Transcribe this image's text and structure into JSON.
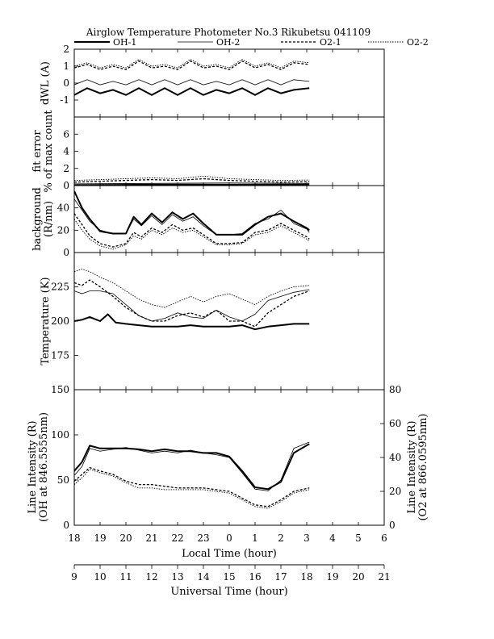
{
  "chart_data": {
    "type": "line",
    "title": "Airglow Temperature Photometer No.3  Rikubetsu   041109",
    "legend": {
      "placement": "top",
      "entries": [
        {
          "name": "OH-1",
          "color": "#000000",
          "style": "solid-thick"
        },
        {
          "name": "OH-2",
          "color": "#000000",
          "style": "solid-thin"
        },
        {
          "name": "O2-1",
          "color": "#000000",
          "style": "dashed"
        },
        {
          "name": "O2-2",
          "color": "#000000",
          "style": "dotted"
        }
      ]
    },
    "x_axes": {
      "local_time": {
        "label": "Local Time (hour)",
        "ticks": [
          "18",
          "19",
          "20",
          "21",
          "22",
          "23",
          "0",
          "1",
          "2",
          "3",
          "4",
          "5",
          "6"
        ]
      },
      "universal_time": {
        "label": "Universal Time (hour)",
        "ticks": [
          "9",
          "10",
          "11",
          "12",
          "13",
          "14",
          "15",
          "16",
          "17",
          "18",
          "19",
          "20",
          "21"
        ]
      },
      "range_ut": [
        9,
        21
      ]
    },
    "panels": [
      {
        "id": "dwl",
        "ylabel": "dWL (A)",
        "ylim": [
          -2,
          2
        ],
        "yticks": [
          "-1",
          "0",
          "1",
          "2"
        ],
        "series": [
          {
            "name": "OH-1",
            "x": [
              9.0,
              9.5,
              10.0,
              10.5,
              11.0,
              11.5,
              12.0,
              12.5,
              13.0,
              13.5,
              14.0,
              14.5,
              15.0,
              15.5,
              16.0,
              16.5,
              17.0,
              17.5,
              18.1
            ],
            "y": [
              -0.7,
              -0.3,
              -0.6,
              -0.4,
              -0.7,
              -0.3,
              -0.7,
              -0.3,
              -0.7,
              -0.3,
              -0.7,
              -0.4,
              -0.6,
              -0.3,
              -0.7,
              -0.3,
              -0.6,
              -0.4,
              -0.3
            ]
          },
          {
            "name": "OH-2",
            "x": [
              9.0,
              9.5,
              10.0,
              10.5,
              11.0,
              11.5,
              12.0,
              12.5,
              13.0,
              13.5,
              14.0,
              14.5,
              15.0,
              15.5,
              16.0,
              16.5,
              17.0,
              17.5,
              18.1
            ],
            "y": [
              -0.1,
              0.2,
              -0.1,
              0.1,
              -0.1,
              0.2,
              -0.1,
              0.2,
              -0.1,
              0.2,
              -0.1,
              0.1,
              -0.1,
              0.2,
              -0.1,
              0.2,
              -0.1,
              0.2,
              0.1
            ]
          },
          {
            "name": "O2-1",
            "x": [
              9.0,
              9.5,
              10.0,
              10.5,
              11.0,
              11.5,
              12.0,
              12.5,
              13.0,
              13.5,
              14.0,
              14.5,
              15.0,
              15.5,
              16.0,
              16.5,
              17.0,
              17.5,
              18.1
            ],
            "y": [
              0.9,
              1.1,
              0.8,
              1.0,
              0.8,
              1.3,
              0.9,
              1.0,
              0.8,
              1.3,
              0.9,
              1.0,
              0.8,
              1.3,
              0.9,
              1.1,
              0.8,
              1.2,
              1.1
            ]
          },
          {
            "name": "O2-2",
            "x": [
              9.0,
              9.5,
              10.0,
              10.5,
              11.0,
              11.5,
              12.0,
              12.5,
              13.0,
              13.5,
              14.0,
              14.5,
              15.0,
              15.5,
              16.0,
              16.5,
              17.0,
              17.5,
              18.1
            ],
            "y": [
              1.0,
              1.2,
              0.9,
              1.1,
              0.9,
              1.4,
              1.0,
              1.1,
              0.9,
              1.4,
              1.0,
              1.1,
              0.9,
              1.4,
              1.0,
              1.2,
              0.9,
              1.3,
              1.2
            ]
          }
        ]
      },
      {
        "id": "fit",
        "ylabel": "fit error\n% of max count",
        "ylim": [
          0,
          8
        ],
        "yticks": [
          "0",
          "2",
          "4",
          "6"
        ],
        "series": [
          {
            "name": "OH-1",
            "x": [
              9.0,
              12.0,
              15.0,
              18.1
            ],
            "y": [
              0.05,
              0.1,
              0.1,
              0.1
            ]
          },
          {
            "name": "OH-2",
            "x": [
              9.0,
              12.0,
              15.0,
              18.1
            ],
            "y": [
              0.2,
              0.25,
              0.3,
              0.25
            ]
          },
          {
            "name": "O2-1",
            "x": [
              9.0,
              10.0,
              11.0,
              12.0,
              13.0,
              14.0,
              15.0,
              16.0,
              17.0,
              18.1
            ],
            "y": [
              0.4,
              0.5,
              0.6,
              0.7,
              0.6,
              0.8,
              0.6,
              0.5,
              0.4,
              0.45
            ]
          },
          {
            "name": "O2-2",
            "x": [
              9.0,
              10.0,
              11.0,
              12.0,
              13.0,
              14.0,
              15.0,
              16.0,
              17.0,
              18.1
            ],
            "y": [
              0.6,
              0.7,
              0.8,
              0.9,
              0.8,
              1.1,
              0.8,
              0.7,
              0.6,
              0.65
            ]
          }
        ]
      },
      {
        "id": "background",
        "ylabel": "background\n(R/nm)",
        "ylim": [
          0,
          60
        ],
        "yticks": [
          "0",
          "20",
          "40"
        ],
        "series": [
          {
            "name": "OH-1",
            "x": [
              9.0,
              9.3,
              9.6,
              10.0,
              10.5,
              11.0,
              11.3,
              11.6,
              12.0,
              12.4,
              12.8,
              13.2,
              13.6,
              14.0,
              14.5,
              15.0,
              15.5,
              16.0,
              16.5,
              17.0,
              17.5,
              18.0,
              18.1
            ],
            "y": [
              55,
              40,
              30,
              19,
              17,
              17,
              32,
              25,
              35,
              27,
              36,
              30,
              35,
              26,
              16,
              16,
              16,
              25,
              32,
              35,
              28,
              22,
              20
            ]
          },
          {
            "name": "OH-2",
            "x": [
              9.0,
              9.3,
              9.6,
              10.0,
              10.5,
              11.0,
              11.3,
              11.6,
              12.0,
              12.4,
              12.8,
              13.2,
              13.6,
              14.0,
              14.5,
              15.0,
              15.5,
              16.0,
              16.5,
              17.0,
              17.5,
              18.0,
              18.1
            ],
            "y": [
              48,
              38,
              28,
              20,
              17,
              17,
              30,
              24,
              33,
              25,
              34,
              28,
              32,
              24,
              16,
              16,
              17,
              26,
              30,
              38,
              26,
              21,
              18
            ]
          },
          {
            "name": "O2-1",
            "x": [
              9.0,
              9.3,
              9.6,
              10.0,
              10.5,
              11.0,
              11.3,
              11.6,
              12.0,
              12.4,
              12.8,
              13.2,
              13.6,
              14.0,
              14.5,
              15.0,
              15.5,
              16.0,
              16.5,
              17.0,
              17.5,
              18.0,
              18.1
            ],
            "y": [
              35,
              25,
              15,
              8,
              5,
              8,
              18,
              14,
              22,
              18,
              25,
              20,
              22,
              16,
              8,
              8,
              9,
              18,
              20,
              26,
              20,
              14,
              12
            ]
          },
          {
            "name": "O2-2",
            "x": [
              9.0,
              9.3,
              9.6,
              10.0,
              10.5,
              11.0,
              11.3,
              11.6,
              12.0,
              12.4,
              12.8,
              13.2,
              13.6,
              14.0,
              14.5,
              15.0,
              15.5,
              16.0,
              16.5,
              17.0,
              17.5,
              18.0,
              18.1
            ],
            "y": [
              30,
              20,
              12,
              6,
              3,
              7,
              15,
              12,
              20,
              16,
              22,
              18,
              20,
              14,
              7,
              7,
              8,
              16,
              18,
              24,
              18,
              12,
              10
            ]
          }
        ]
      },
      {
        "id": "temperature",
        "ylabel": "Temperature (K)",
        "ylim": [
          150,
          250
        ],
        "yticks": [
          "175",
          "200",
          "225"
        ],
        "series": [
          {
            "name": "OH-1",
            "x": [
              9.0,
              9.3,
              9.6,
              10.0,
              10.3,
              10.6,
              11.0,
              11.5,
              12.0,
              12.5,
              13.0,
              13.5,
              14.0,
              14.5,
              15.0,
              15.5,
              16.0,
              16.5,
              17.0,
              17.5,
              18.1
            ],
            "y": [
              200,
              201,
              203,
              200,
              205,
              199,
              198,
              197,
              196,
              196,
              196,
              197,
              196,
              196,
              196,
              197,
              194,
              196,
              197,
              198,
              198
            ]
          },
          {
            "name": "OH-2",
            "x": [
              9.0,
              9.3,
              9.6,
              10.0,
              10.5,
              11.0,
              11.5,
              12.0,
              12.5,
              13.0,
              13.5,
              14.0,
              14.5,
              15.0,
              15.5,
              16.0,
              16.5,
              17.0,
              17.5,
              18.1
            ],
            "y": [
              222,
              220,
              222,
              222,
              220,
              212,
              204,
              200,
              202,
              206,
              203,
              202,
              208,
              203,
              200,
              205,
              215,
              218,
              221,
              223
            ]
          },
          {
            "name": "O2-1",
            "x": [
              9.0,
              9.3,
              9.6,
              10.0,
              10.5,
              11.0,
              11.5,
              12.0,
              12.5,
              13.0,
              13.5,
              14.0,
              14.5,
              15.0,
              15.5,
              16.0,
              16.5,
              17.0,
              17.5,
              18.1
            ],
            "y": [
              228,
              226,
              230,
              225,
              218,
              210,
              204,
              200,
              200,
              204,
              206,
              203,
              208,
              200,
              200,
              196,
              206,
              212,
              218,
              222
            ]
          },
          {
            "name": "O2-2",
            "x": [
              9.0,
              9.3,
              9.6,
              10.0,
              10.5,
              11.0,
              11.5,
              12.0,
              12.5,
              13.0,
              13.5,
              14.0,
              14.5,
              15.0,
              15.5,
              16.0,
              16.5,
              17.0,
              17.5,
              18.1
            ],
            "y": [
              236,
              238,
              236,
              232,
              228,
              222,
              216,
              212,
              210,
              214,
              218,
              214,
              218,
              220,
              216,
              212,
              218,
              222,
              225,
              226
            ]
          }
        ]
      },
      {
        "id": "intensity",
        "ylabel_left": "Line Intensity (R)\n(OH at 846.5555nm)",
        "ylabel_right": "Line Intensity (R)\n(O2 at 866.0595nm)",
        "ylim_left": [
          0,
          150
        ],
        "ylim_right": [
          0,
          80
        ],
        "yticks_left": [
          "0",
          "50",
          "100",
          "150"
        ],
        "yticks_right": [
          "0",
          "20",
          "40",
          "60",
          "80"
        ],
        "series": [
          {
            "name": "OH-1",
            "axis": "left",
            "x": [
              9.0,
              9.3,
              9.6,
              10.0,
              10.5,
              11.0,
              11.5,
              12.0,
              12.5,
              13.0,
              13.5,
              14.0,
              14.5,
              15.0,
              15.5,
              16.0,
              16.5,
              17.0,
              17.5,
              18.1
            ],
            "y": [
              60,
              70,
              88,
              85,
              85,
              85,
              84,
              82,
              84,
              82,
              82,
              80,
              80,
              76,
              60,
              42,
              40,
              48,
              80,
              90
            ]
          },
          {
            "name": "OH-2",
            "axis": "left",
            "x": [
              9.0,
              9.3,
              9.6,
              10.0,
              10.5,
              11.0,
              11.5,
              12.0,
              12.5,
              13.0,
              13.5,
              14.0,
              14.5,
              15.0,
              15.5,
              16.0,
              16.5,
              17.0,
              17.5,
              18.1
            ],
            "y": [
              55,
              65,
              85,
              82,
              84,
              86,
              83,
              80,
              82,
              80,
              83,
              80,
              78,
              75,
              58,
              40,
              38,
              50,
              85,
              92
            ]
          },
          {
            "name": "O2-1",
            "axis": "right",
            "x": [
              9.0,
              9.3,
              9.6,
              10.0,
              10.5,
              11.0,
              11.5,
              12.0,
              12.5,
              13.0,
              13.5,
              14.0,
              14.5,
              15.0,
              15.5,
              16.0,
              16.5,
              17.0,
              17.5,
              18.1
            ],
            "y": [
              26,
              30,
              34,
              32,
              30,
              26,
              24,
              24,
              23,
              22,
              22,
              22,
              21,
              20,
              16,
              12,
              11,
              15,
              20,
              22
            ]
          },
          {
            "name": "O2-2",
            "axis": "right",
            "x": [
              9.0,
              9.3,
              9.6,
              10.0,
              10.5,
              11.0,
              11.5,
              12.0,
              12.5,
              13.0,
              13.5,
              14.0,
              14.5,
              15.0,
              15.5,
              16.0,
              16.5,
              17.0,
              17.5,
              18.1
            ],
            "y": [
              24,
              28,
              33,
              31,
              29,
              25,
              22,
              22,
              21,
              21,
              21,
              21,
              20,
              19,
              15,
              11,
              10,
              14,
              19,
              21
            ]
          }
        ]
      }
    ]
  }
}
